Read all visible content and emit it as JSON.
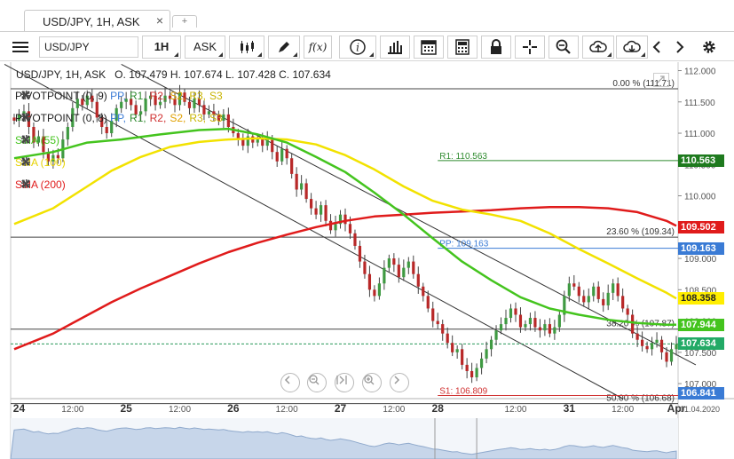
{
  "tab": {
    "label": "USD/JPY, 1H, ASK",
    "close": "×",
    "add": "+"
  },
  "toolbar": {
    "symbol_value": "USD/JPY",
    "timeframe": "1H",
    "side": "ASK",
    "icons": [
      "menu-icon",
      "candles-icon",
      "pencil-icon",
      "function-icon",
      "info-icon",
      "bar-chart-icon",
      "calendar-icon",
      "calculator-icon",
      "lock-icon",
      "crosshair-icon",
      "zoom-icon",
      "upload-cloud-icon",
      "download-cloud-icon",
      "chevron-left-icon",
      "chevron-right-icon",
      "gear-icon"
    ],
    "fx_label": "f(x)",
    "info_label": "i"
  },
  "chart_data": {
    "type": "candlestick",
    "instrument": "USD/JPY, 1H, ASK",
    "ohlc": {
      "o_label": "O.",
      "open": "107.479",
      "h_label": "H.",
      "high": "107.674",
      "l_label": "L.",
      "low": "107.428",
      "c_label": "C.",
      "close": "107.634"
    },
    "y_ticks": [
      "112.000",
      "111.500",
      "111.000",
      "110.500",
      "110.000",
      "109.500",
      "109.000",
      "108.500",
      "108.000",
      "107.500",
      "107.000"
    ],
    "y_range": [
      106.76,
      112.05
    ],
    "x_ticks": [
      {
        "label": "24",
        "i": 1
      },
      {
        "label": "12:00",
        "i": 12
      },
      {
        "label": "25",
        "i": 23
      },
      {
        "label": "12:00",
        "i": 34
      },
      {
        "label": "26",
        "i": 45
      },
      {
        "label": "12:00",
        "i": 56
      },
      {
        "label": "27",
        "i": 67
      },
      {
        "label": "12:00",
        "i": 78
      },
      {
        "label": "28",
        "i": 87
      },
      {
        "label": "12:00",
        "i": 103
      },
      {
        "label": "31",
        "i": 114
      },
      {
        "label": "12:00",
        "i": 125
      },
      {
        "label": "Apr",
        "i": 136
      }
    ],
    "x_end_label": "01.04.2020",
    "legend": {
      "pivot1": {
        "name": "PIVOTPOINT (0, 9)",
        "keys": [
          "PP,",
          "R1,",
          "R2,",
          "S2,",
          "R3,",
          "S3"
        ]
      },
      "pivot2": {
        "name": "PIVOTPOINT (0, 8)",
        "keys": [
          "PP,",
          "R1,",
          "R2,",
          "S2,",
          "R3,",
          "S3"
        ]
      },
      "sma55": "SMA (55)",
      "sma100": "SMA (100)",
      "sma200": "SMA (200)"
    },
    "pivot_levels": [
      {
        "name": "R1: 110.563",
        "value": 110.563,
        "color": "#2e8b2e"
      },
      {
        "name": "PP: 109.163",
        "value": 109.163,
        "color": "#3a7bd5"
      },
      {
        "name": "S1: 106.809",
        "value": 106.809,
        "color": "#d03030"
      }
    ],
    "fib_levels": [
      {
        "label": "0.00 % (111.71)",
        "value": 111.71
      },
      {
        "label": "23.60 % (109.34)",
        "value": 109.34
      },
      {
        "label": "38.20 % (107.87)",
        "value": 107.87
      },
      {
        "label": "50.00 % (106.68)",
        "value": 106.68
      }
    ],
    "price_tags": [
      {
        "label": "110.563",
        "value": 110.563,
        "bg": "#1e7a1e",
        "fg": "#ffffff"
      },
      {
        "label": "109.502",
        "value": 109.502,
        "bg": "#e01b1b",
        "fg": "#ffffff"
      },
      {
        "label": "109.163",
        "value": 109.163,
        "bg": "#3a7bd5",
        "fg": "#ffffff"
      },
      {
        "label": "108.358",
        "value": 108.358,
        "bg": "#ffee00",
        "fg": "#222222"
      },
      {
        "label": "107.944",
        "value": 107.944,
        "bg": "#44c41e",
        "fg": "#ffffff"
      },
      {
        "label": "107.634",
        "value": 107.634,
        "bg": "#22aa66",
        "fg": "#ffffff"
      },
      {
        "label": "106.841",
        "value": 106.841,
        "bg": "#3a7bd5",
        "fg": "#ffffff"
      }
    ],
    "sma55": [
      [
        0,
        110.6
      ],
      [
        8,
        110.7
      ],
      [
        15,
        110.85
      ],
      [
        22,
        110.9
      ],
      [
        30,
        110.98
      ],
      [
        38,
        111.05
      ],
      [
        44,
        111.07
      ],
      [
        50,
        110.98
      ],
      [
        56,
        110.85
      ],
      [
        62,
        110.62
      ],
      [
        68,
        110.38
      ],
      [
        74,
        110.05
      ],
      [
        80,
        109.7
      ],
      [
        86,
        109.32
      ],
      [
        92,
        108.95
      ],
      [
        98,
        108.65
      ],
      [
        104,
        108.38
      ],
      [
        110,
        108.2
      ],
      [
        116,
        108.1
      ],
      [
        122,
        108.02
      ],
      [
        128,
        107.97
      ],
      [
        134,
        107.94
      ],
      [
        136,
        107.94
      ]
    ],
    "sma100": [
      [
        0,
        109.55
      ],
      [
        8,
        109.8
      ],
      [
        14,
        110.1
      ],
      [
        20,
        110.4
      ],
      [
        26,
        110.62
      ],
      [
        32,
        110.78
      ],
      [
        38,
        110.86
      ],
      [
        44,
        110.9
      ],
      [
        50,
        110.92
      ],
      [
        56,
        110.9
      ],
      [
        62,
        110.82
      ],
      [
        68,
        110.65
      ],
      [
        74,
        110.42
      ],
      [
        80,
        110.15
      ],
      [
        86,
        109.92
      ],
      [
        92,
        109.78
      ],
      [
        98,
        109.7
      ],
      [
        104,
        109.6
      ],
      [
        110,
        109.4
      ],
      [
        116,
        109.15
      ],
      [
        122,
        108.92
      ],
      [
        128,
        108.68
      ],
      [
        134,
        108.45
      ],
      [
        136,
        108.36
      ]
    ],
    "sma200": [
      [
        0,
        107.55
      ],
      [
        8,
        107.8
      ],
      [
        14,
        108.05
      ],
      [
        20,
        108.3
      ],
      [
        26,
        108.52
      ],
      [
        32,
        108.72
      ],
      [
        38,
        108.92
      ],
      [
        44,
        109.1
      ],
      [
        50,
        109.25
      ],
      [
        56,
        109.38
      ],
      [
        62,
        109.5
      ],
      [
        68,
        109.6
      ],
      [
        74,
        109.67
      ],
      [
        80,
        109.7
      ],
      [
        86,
        109.73
      ],
      [
        92,
        109.75
      ],
      [
        98,
        109.77
      ],
      [
        104,
        109.8
      ],
      [
        110,
        109.82
      ],
      [
        116,
        109.82
      ],
      [
        122,
        109.8
      ],
      [
        128,
        109.74
      ],
      [
        134,
        109.6
      ],
      [
        136,
        109.52
      ]
    ],
    "channel_lines": [
      {
        "from": [
          -2,
          112.1
        ],
        "to": [
          125,
          106.76
        ]
      },
      {
        "from": [
          22,
          112.1
        ],
        "to": [
          140,
          107.3
        ]
      }
    ],
    "close_series": [
      111.2,
      111.3,
      111.35,
      111.1,
      110.85,
      110.95,
      110.7,
      110.55,
      110.65,
      110.6,
      110.9,
      111.1,
      111.4,
      111.55,
      111.45,
      111.6,
      111.5,
      111.25,
      111.1,
      111.0,
      111.2,
      111.4,
      111.5,
      111.55,
      111.45,
      111.3,
      111.35,
      111.55,
      111.6,
      111.45,
      111.5,
      111.6,
      111.55,
      111.45,
      111.65,
      111.5,
      111.4,
      111.55,
      111.45,
      111.3,
      111.35,
      111.3,
      111.2,
      111.3,
      111.1,
      111.0,
      110.9,
      110.8,
      110.95,
      110.85,
      110.9,
      110.8,
      110.9,
      110.7,
      110.55,
      110.75,
      110.6,
      110.35,
      110.1,
      110.2,
      109.95,
      109.8,
      109.7,
      109.85,
      109.6,
      109.45,
      109.55,
      109.7,
      109.55,
      109.4,
      109.2,
      108.95,
      108.75,
      108.5,
      108.4,
      108.6,
      108.85,
      109.0,
      108.9,
      108.7,
      108.85,
      108.95,
      108.75,
      108.55,
      108.4,
      108.2,
      108.0,
      107.95,
      107.8,
      107.65,
      107.5,
      107.55,
      107.3,
      107.2,
      107.1,
      107.25,
      107.4,
      107.55,
      107.7,
      107.85,
      107.95,
      108.05,
      108.2,
      108.1,
      107.9,
      107.95,
      108.05,
      107.9,
      107.85,
      107.95,
      107.8,
      107.9,
      108.1,
      108.4,
      108.6,
      108.55,
      108.4,
      108.3,
      108.4,
      108.55,
      108.35,
      108.25,
      108.45,
      108.6,
      108.4,
      108.2,
      108.1,
      107.8,
      107.7,
      107.6,
      107.55,
      107.65,
      107.7,
      107.5,
      107.35,
      107.55,
      107.63
    ]
  }
}
